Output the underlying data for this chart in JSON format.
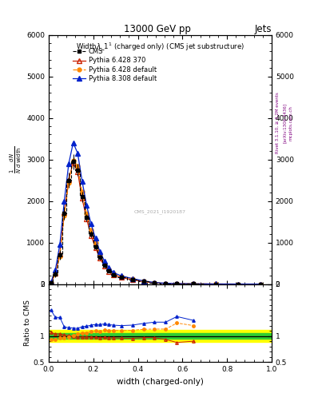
{
  "title": "13000 GeV pp",
  "title_right": "Jets",
  "plot_title": "Widthλ_1¹ (charged only) (CMS jet substructure)",
  "xlabel": "width (charged-only)",
  "ylabel_ratio": "Ratio to CMS",
  "watermark": "CMS_2021_I1920187",
  "rivet_label": "Rivet 3.1.10, ≥ 3.2M events",
  "arxiv_label": "[arXiv:1306.3436]",
  "mcplots_label": "mcplots.cern.ch",
  "x_bins": [
    0.0,
    0.02,
    0.04,
    0.06,
    0.08,
    0.1,
    0.12,
    0.14,
    0.16,
    0.18,
    0.2,
    0.22,
    0.24,
    0.26,
    0.28,
    0.3,
    0.35,
    0.4,
    0.45,
    0.5,
    0.55,
    0.6,
    0.7,
    0.8,
    0.9,
    1.0
  ],
  "cms_values": [
    30,
    250,
    700,
    1700,
    2500,
    2950,
    2750,
    2100,
    1600,
    1200,
    900,
    640,
    450,
    320,
    230,
    165,
    110,
    62,
    30,
    15,
    8,
    5,
    1.5,
    0.4,
    0.15
  ],
  "cms_errors": [
    15,
    80,
    120,
    150,
    180,
    180,
    140,
    130,
    90,
    80,
    70,
    55,
    45,
    35,
    28,
    22,
    18,
    12,
    8,
    5,
    3,
    2,
    1,
    0.3,
    0.1
  ],
  "py6_370_values": [
    32,
    260,
    730,
    1730,
    2520,
    2920,
    2700,
    2060,
    1570,
    1170,
    875,
    618,
    438,
    308,
    222,
    158,
    105,
    60,
    29,
    14,
    7,
    4.5,
    1.4,
    0.35,
    0.12
  ],
  "py6_def_values": [
    28,
    235,
    670,
    1650,
    2440,
    2980,
    2840,
    2220,
    1700,
    1300,
    990,
    700,
    500,
    355,
    255,
    182,
    122,
    70,
    34,
    17,
    10,
    6,
    2,
    0.5,
    0.18
  ],
  "py8_def_values": [
    45,
    340,
    950,
    2000,
    2900,
    3400,
    3150,
    2480,
    1900,
    1450,
    1100,
    780,
    555,
    390,
    278,
    198,
    133,
    77,
    38,
    19,
    11,
    6.5,
    2.2,
    0.55,
    0.2
  ],
  "ratio_green_band": 0.05,
  "ratio_yellow_band": 0.12,
  "cms_color": "#000000",
  "py6_370_color": "#cc2200",
  "py6_def_color": "#ff8800",
  "py8_def_color": "#0022cc",
  "ylim_main": [
    0,
    6000
  ],
  "ylim_ratio": [
    0.5,
    2.0
  ],
  "xlim": [
    0.0,
    1.0
  ],
  "yticks_main": [
    0,
    1000,
    2000,
    3000,
    4000,
    5000,
    6000
  ],
  "ytick_labels_main": [
    "0",
    "1000",
    "2000",
    "3000",
    "4000",
    "5000",
    "6000"
  ],
  "yticks_ratio": [
    0.5,
    1.0,
    2.0
  ],
  "ytick_labels_ratio": [
    "0.5",
    "1",
    "2"
  ],
  "bg_color": "#ffffff"
}
